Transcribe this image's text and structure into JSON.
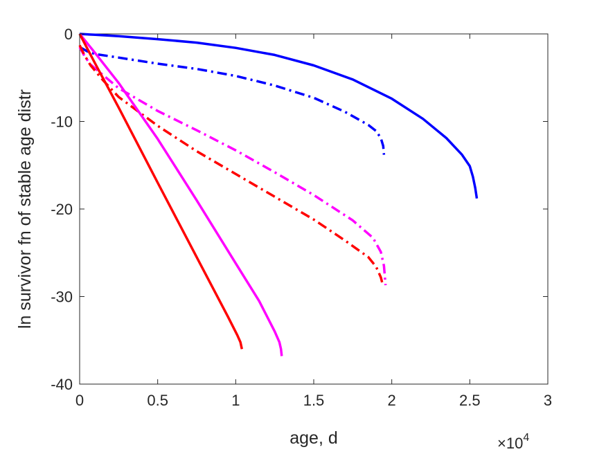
{
  "chart_data": {
    "type": "line",
    "title": "",
    "xlabel": "age, d",
    "ylabel": "ln survivor fn of stable age distr",
    "x_multiplier_label": "×10",
    "x_multiplier_exponent": "4",
    "x_multiplier": 10000,
    "xlim": [
      0,
      30000
    ],
    "ylim": [
      -40,
      0
    ],
    "xticks": [
      0,
      5000,
      10000,
      15000,
      20000,
      25000,
      30000
    ],
    "xtick_labels": [
      "0",
      "0.5",
      "1",
      "1.5",
      "2",
      "2.5",
      "3"
    ],
    "yticks": [
      -40,
      -30,
      -20,
      -10,
      0
    ],
    "ytick_labels": [
      "-40",
      "-30",
      "-20",
      "-10",
      "0"
    ],
    "grid": false,
    "series": [
      {
        "color": "#0000ff",
        "style": "solid",
        "points": [
          [
            0,
            0
          ],
          [
            1000,
            -0.1
          ],
          [
            2500,
            -0.25
          ],
          [
            5000,
            -0.6
          ],
          [
            7500,
            -1.0
          ],
          [
            10000,
            -1.6
          ],
          [
            12500,
            -2.4
          ],
          [
            15000,
            -3.6
          ],
          [
            17500,
            -5.2
          ],
          [
            20000,
            -7.4
          ],
          [
            22000,
            -9.7
          ],
          [
            23500,
            -11.9
          ],
          [
            24500,
            -13.8
          ],
          [
            25000,
            -15.1
          ],
          [
            25200,
            -16.3
          ],
          [
            25350,
            -17.6
          ],
          [
            25450,
            -18.8
          ]
        ]
      },
      {
        "color": "#0000ff",
        "style": "dashdot",
        "points": [
          [
            0,
            -1.5
          ],
          [
            500,
            -2.0
          ],
          [
            1000,
            -2.3
          ],
          [
            2500,
            -2.7
          ],
          [
            5000,
            -3.4
          ],
          [
            7500,
            -4.0
          ],
          [
            10000,
            -4.8
          ],
          [
            12500,
            -5.9
          ],
          [
            15000,
            -7.3
          ],
          [
            17000,
            -8.9
          ],
          [
            18500,
            -10.4
          ],
          [
            19000,
            -11.1
          ],
          [
            19300,
            -11.9
          ],
          [
            19450,
            -12.8
          ],
          [
            19500,
            -13.8
          ]
        ]
      },
      {
        "color": "#ff00ff",
        "style": "dashdot",
        "points": [
          [
            0,
            -1.5
          ],
          [
            300,
            -2.5
          ],
          [
            700,
            -3.5
          ],
          [
            1500,
            -4.7
          ],
          [
            2500,
            -6.2
          ],
          [
            5000,
            -8.8
          ],
          [
            7500,
            -11.0
          ],
          [
            10000,
            -13.3
          ],
          [
            12500,
            -15.8
          ],
          [
            15000,
            -18.4
          ],
          [
            17500,
            -21.3
          ],
          [
            18800,
            -23.3
          ],
          [
            19300,
            -24.9
          ],
          [
            19500,
            -26.5
          ],
          [
            19600,
            -28.7
          ]
        ]
      },
      {
        "color": "#ff0000",
        "style": "dashdot",
        "points": [
          [
            0,
            -1.3
          ],
          [
            300,
            -2.4
          ],
          [
            700,
            -3.6
          ],
          [
            1500,
            -5.3
          ],
          [
            2500,
            -7.2
          ],
          [
            5000,
            -10.5
          ],
          [
            7500,
            -13.4
          ],
          [
            10000,
            -16.0
          ],
          [
            12500,
            -18.6
          ],
          [
            15000,
            -21.2
          ],
          [
            17000,
            -23.6
          ],
          [
            18500,
            -25.5
          ],
          [
            19000,
            -26.6
          ],
          [
            19300,
            -27.8
          ],
          [
            19400,
            -28.5
          ]
        ]
      },
      {
        "color": "#ff00ff",
        "style": "solid",
        "points": [
          [
            0,
            0
          ],
          [
            1000,
            -2.2
          ],
          [
            2500,
            -5.6
          ],
          [
            5000,
            -12.0
          ],
          [
            7500,
            -19.0
          ],
          [
            10000,
            -26.2
          ],
          [
            11500,
            -30.5
          ],
          [
            12500,
            -34.0
          ],
          [
            12800,
            -35.2
          ],
          [
            12900,
            -36.0
          ],
          [
            12950,
            -36.8
          ]
        ]
      },
      {
        "color": "#ff0000",
        "style": "solid",
        "points": [
          [
            0,
            0
          ],
          [
            1000,
            -3.4
          ],
          [
            2500,
            -8.4
          ],
          [
            5000,
            -17.0
          ],
          [
            7500,
            -25.5
          ],
          [
            9500,
            -32.3
          ],
          [
            10100,
            -34.4
          ],
          [
            10300,
            -35.2
          ],
          [
            10400,
            -36.0
          ]
        ]
      }
    ]
  }
}
